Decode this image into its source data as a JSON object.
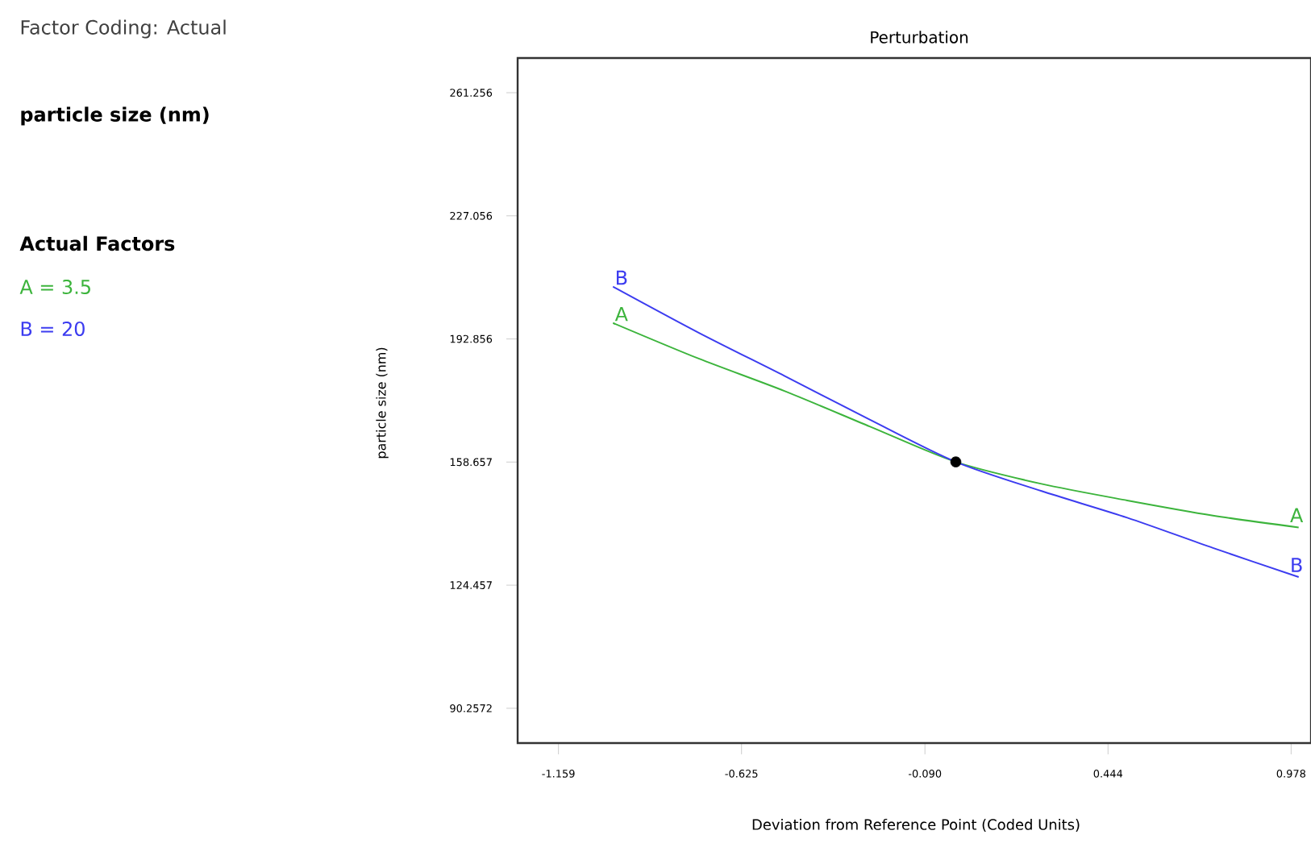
{
  "chart_data": {
    "type": "line",
    "title": "Perturbation",
    "xlabel": "Deviation from Reference Point (Coded Units)",
    "ylabel": "particle size (nm)",
    "annotations": [
      "Factor Coding: Actual",
      "particle size (nm)",
      "Actual Factors",
      "A = 3.5",
      "B = 20"
    ],
    "xlim": [
      -1.278,
      1.036
    ],
    "ylim": [
      80.6,
      270.9
    ],
    "xticks": [
      -1.159,
      -0.625,
      {
        "value": -0.09,
        "label": "-0.090"
      },
      0.444,
      0.978
    ],
    "yticks": [
      90.2572,
      124.457,
      158.657,
      192.856,
      227.056,
      261.256
    ],
    "series": [
      {
        "name": "A",
        "color": "#3cb43c",
        "x": [
          -1,
          -0.75,
          -0.5,
          -0.25,
          0,
          0.25,
          0.5,
          0.75,
          1
        ],
        "values": [
          197.3,
          187.4,
          178.4,
          168.5,
          158.7,
          152.6,
          148.0,
          143.8,
          140.5
        ]
      },
      {
        "name": "B",
        "color": "#3c3cf0",
        "x": [
          -1,
          -0.75,
          -0.5,
          -0.25,
          0,
          0.25,
          0.5,
          0.75,
          1
        ],
        "values": [
          207.4,
          194.6,
          182.6,
          170.4,
          158.7,
          150.6,
          143.2,
          134.8,
          126.7
        ]
      },
      {
        "type": "scatter",
        "color": "#000000",
        "marker": "circle",
        "x": [
          0
        ],
        "values": [
          158.7
        ]
      }
    ]
  }
}
